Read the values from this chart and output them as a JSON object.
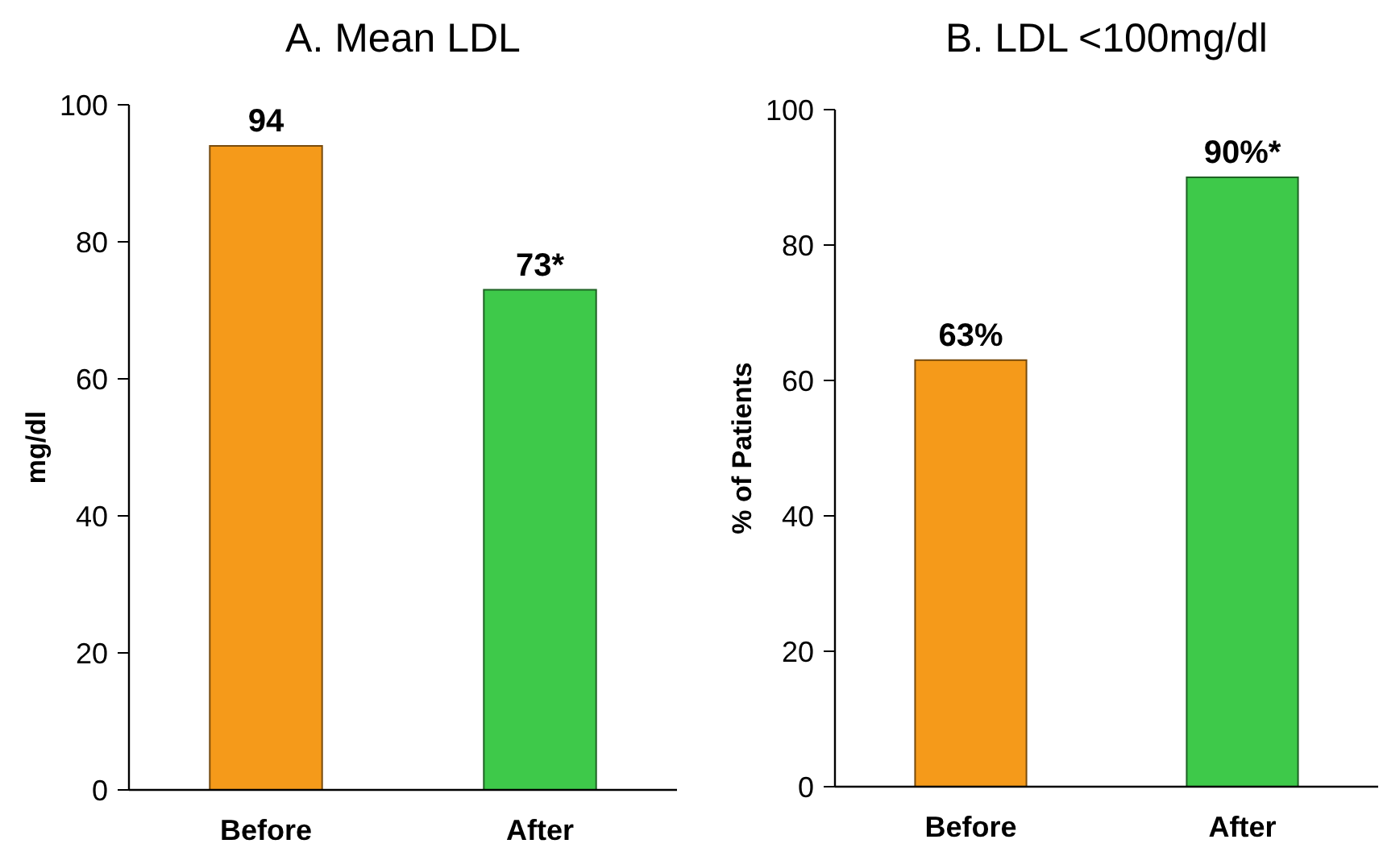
{
  "chart_data": [
    {
      "type": "bar",
      "title": "A. Mean LDL",
      "ylabel": "mg/dl",
      "categories": [
        "Before",
        "After"
      ],
      "values": [
        94,
        73
      ],
      "colors": [
        "#f59a1a",
        "#3ec94a"
      ],
      "value_labels": [
        "94",
        "73*"
      ],
      "ylim": [
        0,
        100
      ],
      "yticks": [
        0,
        20,
        40,
        60,
        80,
        100
      ],
      "grid": false
    },
    {
      "type": "bar",
      "title": "B. LDL <100mg/dl",
      "ylabel": "% of Patients",
      "categories": [
        "Before",
        "After"
      ],
      "values": [
        63,
        90
      ],
      "colors": [
        "#f59a1a",
        "#3ec94a"
      ],
      "value_labels": [
        "63%",
        "90%*"
      ],
      "ylim": [
        0,
        100
      ],
      "yticks": [
        0,
        20,
        40,
        60,
        80,
        100
      ],
      "grid": false
    }
  ]
}
